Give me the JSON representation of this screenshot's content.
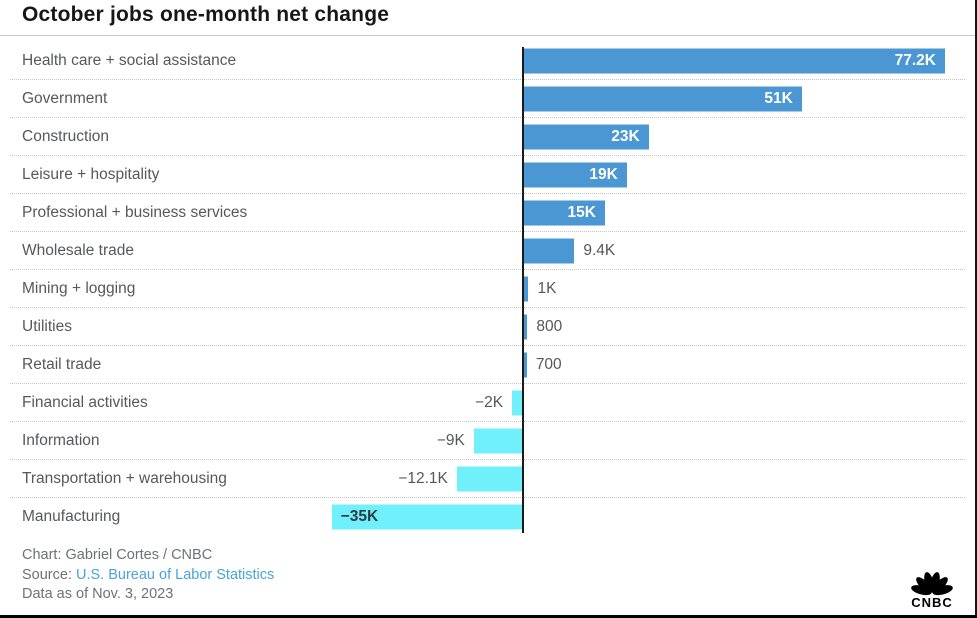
{
  "title": "October jobs one-month net change",
  "chart_data": {
    "type": "bar",
    "orientation": "horizontal",
    "title": "October jobs one-month net change",
    "categories": [
      "Health care + social assistance",
      "Government",
      "Construction",
      "Leisure + hospitality",
      "Professional + business services",
      "Wholesale trade",
      "Mining + logging",
      "Utilities",
      "Retail trade",
      "Financial activities",
      "Information",
      "Transportation + warehousing",
      "Manufacturing"
    ],
    "values": [
      77200,
      51000,
      23000,
      19000,
      15000,
      9400,
      1000,
      800,
      700,
      -2000,
      -9000,
      -12100,
      -35000
    ],
    "value_labels": [
      "77.2K",
      "51K",
      "23K",
      "19K",
      "15K",
      "9.4K",
      "1K",
      "800",
      "700",
      "−2K",
      "−9K",
      "−12.1K",
      "−35K"
    ],
    "xlim": [
      -38000,
      80000
    ],
    "grid": "dotted-row-separators",
    "legend": "none"
  },
  "footer": {
    "credit": "Chart: Gabriel Cortes / CNBC",
    "source_label": "Source:",
    "source_link": "U.S. Bureau of Labor Statistics",
    "data_as_of": "Data as of Nov. 3, 2023"
  },
  "logo": {
    "text": "CNBC"
  },
  "colors": {
    "bar_positive": "#4a97d3",
    "bar_negative": "#6ff0fb",
    "category_text": "#56585d",
    "value_outside": "#55575c",
    "value_inside_positive": "#ffffff",
    "value_inside_negative": "#2e3d45",
    "axis_line": "#1a1a1a",
    "link": "#4aa3dc"
  }
}
